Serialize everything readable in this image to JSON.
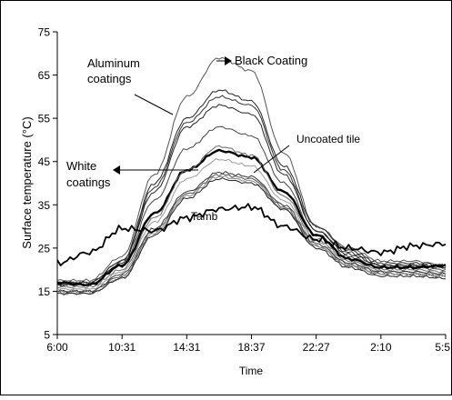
{
  "chart_data": {
    "type": "line",
    "xlabel": "Time",
    "ylabel": "Surface temperature (°C)",
    "ylim": [
      5,
      75
    ],
    "yticks": [
      "75",
      "65",
      "55",
      "45",
      "35",
      "25",
      "15",
      "5"
    ],
    "xticks": [
      "6:00",
      "10:31",
      "14:31",
      "18:37",
      "22:27",
      "2:10",
      "5:51"
    ],
    "x_hours": [
      0,
      2,
      4,
      6,
      8,
      10,
      12,
      14,
      16,
      18,
      20,
      22,
      24
    ],
    "grid": false,
    "legend": "annotations",
    "annotations": [
      {
        "id": "black-coating",
        "text": "Black Coating"
      },
      {
        "id": "aluminum-coatings",
        "lines": [
          "Aluminum",
          "coatings"
        ]
      },
      {
        "id": "uncoated-tile",
        "text": "Uncoated tile"
      },
      {
        "id": "white-coatings",
        "lines": [
          "White",
          "coatings"
        ]
      },
      {
        "id": "tamb",
        "text": "Tamb"
      }
    ],
    "series": [
      {
        "group": "black",
        "color": "#555555",
        "width": 1,
        "values": [
          17.5,
          17.5,
          23,
          42,
          60,
          69,
          66,
          47,
          30,
          25,
          22,
          22,
          21
        ]
      },
      {
        "group": "aluminum",
        "color": "#222222",
        "width": 1,
        "values": [
          17,
          17,
          22,
          40,
          55,
          61.5,
          59,
          44,
          30,
          24.5,
          21.5,
          21.5,
          21
        ]
      },
      {
        "group": "aluminum",
        "color": "#333333",
        "width": 1,
        "values": [
          17,
          17,
          22,
          39,
          54,
          60,
          58,
          43,
          29,
          24,
          21,
          21,
          20.5
        ]
      },
      {
        "group": "aluminum",
        "color": "#222222",
        "width": 1,
        "values": [
          16.5,
          16.5,
          21.5,
          38,
          53,
          58,
          56,
          42,
          29,
          23.5,
          21,
          21,
          20.5
        ]
      },
      {
        "group": "aluminum",
        "color": "#444444",
        "width": 1,
        "values": [
          16.5,
          16.5,
          21,
          36,
          48,
          53,
          51,
          40,
          28,
          23,
          20.5,
          20.5,
          20
        ]
      },
      {
        "group": "uncoated",
        "color": "#000000",
        "width": 2.4,
        "values": [
          17,
          16.5,
          21,
          33,
          43,
          47.5,
          46,
          38,
          28,
          22.5,
          20.5,
          20.5,
          21
        ]
      },
      {
        "group": "white",
        "color": "#666666",
        "width": 1,
        "values": [
          16,
          16,
          20,
          32,
          43,
          48.5,
          46.5,
          37,
          27,
          22,
          20,
          20,
          19.5
        ]
      },
      {
        "group": "white",
        "color": "#999999",
        "width": 1,
        "values": [
          15.5,
          15.5,
          19.5,
          31,
          41,
          45.5,
          44,
          36,
          26.5,
          21.5,
          19.5,
          19.5,
          19
        ]
      },
      {
        "group": "white",
        "color": "#333333",
        "width": 1,
        "values": [
          15,
          15,
          19,
          29.5,
          38,
          42.5,
          41.5,
          35,
          26,
          21.5,
          19.5,
          19.5,
          19
        ]
      },
      {
        "group": "white",
        "color": "#555555",
        "width": 1,
        "values": [
          15,
          15,
          18.5,
          29,
          37.5,
          42,
          41,
          34.5,
          25.5,
          21,
          19,
          19,
          18.5
        ]
      },
      {
        "group": "white",
        "color": "#888888",
        "width": 1,
        "values": [
          14.5,
          14.5,
          18,
          28.5,
          37,
          41.5,
          40.5,
          34,
          25.5,
          21,
          19,
          19,
          18.5
        ]
      },
      {
        "group": "white",
        "color": "#222222",
        "width": 1,
        "values": [
          14.5,
          14.5,
          18,
          28,
          36.5,
          41,
          40,
          34,
          25,
          20.5,
          18.5,
          18.5,
          18
        ]
      },
      {
        "group": "tamb",
        "color": "#000000",
        "width": 1.8,
        "values": [
          21.5,
          24,
          29.5,
          29,
          32,
          34,
          34.5,
          30,
          27,
          25,
          24,
          25.5,
          26
        ]
      }
    ]
  }
}
